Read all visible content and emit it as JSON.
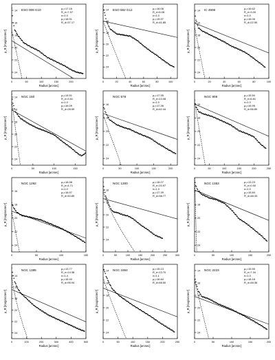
{
  "figure": {
    "y_axis_label": "μ_R [mag/arcsec²]",
    "x_axis_label": "Radius [arcsec]"
  },
  "chart_data": [
    {
      "type": "scatter",
      "name": "ESO 009 G10",
      "xlim": [
        0,
        250
      ],
      "ylim": [
        25,
        13
      ],
      "xticks": [
        0,
        50,
        100,
        150,
        200
      ],
      "yticks": [
        14,
        16,
        18,
        20,
        22,
        24
      ],
      "params": [
        "μ₀=17.16",
        "R_e=7.97",
        "n=1.0",
        "μ₀=18.91",
        "R_d=37.17"
      ],
      "bulge": {
        "mu0": 17.16,
        "re": 7.97,
        "n": 1.0
      },
      "disk": {
        "mu0": 18.91,
        "rd": 37.17
      },
      "profile": [
        [
          0,
          13.7
        ],
        [
          5,
          16.0
        ],
        [
          10,
          17.1
        ],
        [
          20,
          18.0
        ],
        [
          40,
          19.2
        ],
        [
          60,
          19.8
        ],
        [
          90,
          20.5
        ],
        [
          120,
          21.6
        ],
        [
          150,
          22.3
        ],
        [
          180,
          23.0
        ],
        [
          200,
          23.6
        ],
        [
          220,
          24.0
        ],
        [
          240,
          24.2
        ]
      ]
    },
    {
      "type": "scatter",
      "name": "ESO 582 G12",
      "xlim": [
        0,
        110
      ],
      "ylim": [
        26,
        13
      ],
      "xticks": [
        0,
        20,
        40,
        60,
        80,
        100
      ],
      "yticks": [
        14,
        16,
        18,
        20,
        22,
        24
      ],
      "params": [
        "μ₀=16.06",
        "R_e=6.08",
        "n=1.0",
        "μ₀=15.97",
        "R_d=41.85"
      ],
      "bulge": {
        "mu0": 16.06,
        "re": 6.08,
        "n": 1.0
      },
      "disk": {
        "mu0": 15.97,
        "rd": 41.85
      },
      "profile": [
        [
          0,
          13.5
        ],
        [
          2,
          14.5
        ],
        [
          5,
          16.0
        ],
        [
          10,
          17.3
        ],
        [
          20,
          18.2
        ],
        [
          30,
          18.4
        ],
        [
          40,
          18.6
        ],
        [
          50,
          19.3
        ],
        [
          60,
          20.3
        ],
        [
          70,
          21.2
        ],
        [
          80,
          22.0
        ],
        [
          90,
          22.9
        ],
        [
          100,
          23.7
        ],
        [
          105,
          24.0
        ]
      ]
    },
    {
      "type": "scatter",
      "name": "IC 4908",
      "xlim": [
        0,
        100
      ],
      "ylim": [
        25,
        13
      ],
      "xticks": [
        0,
        20,
        40,
        60,
        80,
        100
      ],
      "yticks": [
        14,
        16,
        18,
        20,
        22,
        24
      ],
      "params": [
        "μ₀=16.62",
        "R_e=3.00",
        "n=1.0",
        "μ₀=16.06",
        "R_d=22.50"
      ],
      "bulge": {
        "mu0": 16.62,
        "re": 3.0,
        "n": 1.0
      },
      "disk": {
        "mu0": 16.06,
        "rd": 22.5
      },
      "profile": [
        [
          0,
          14.2
        ],
        [
          2,
          15.6
        ],
        [
          5,
          16.8
        ],
        [
          10,
          17.3
        ],
        [
          20,
          17.9
        ],
        [
          30,
          18.5
        ],
        [
          40,
          19.1
        ],
        [
          50,
          19.8
        ],
        [
          60,
          20.3
        ],
        [
          70,
          20.9
        ],
        [
          80,
          21.8
        ],
        [
          90,
          22.7
        ],
        [
          95,
          23.2
        ]
      ]
    },
    {
      "type": "scatter",
      "name": "NGC 150",
      "xlim": [
        0,
        175
      ],
      "ylim": [
        25,
        13
      ],
      "xticks": [
        0,
        50,
        100,
        150
      ],
      "yticks": [
        14,
        16,
        18,
        20,
        22,
        24
      ],
      "params": [
        "μ₀=14.51",
        "R_e=3.51",
        "n=1.0",
        "μ₀=16.09",
        "R_d=28.59"
      ],
      "bulge": {
        "mu0": 14.51,
        "re": 3.51,
        "n": 1.0
      },
      "disk": {
        "mu0": 16.09,
        "rd": 28.59
      },
      "profile": [
        [
          0,
          13.6
        ],
        [
          3,
          15.0
        ],
        [
          8,
          16.3
        ],
        [
          20,
          17.4
        ],
        [
          40,
          18.3
        ],
        [
          60,
          19.0
        ],
        [
          80,
          19.5
        ],
        [
          100,
          20.1
        ],
        [
          120,
          21.2
        ],
        [
          140,
          22.2
        ],
        [
          155,
          23.1
        ],
        [
          165,
          23.5
        ],
        [
          175,
          23.0
        ]
      ]
    },
    {
      "type": "scatter",
      "name": "NGC 578",
      "xlim": [
        0,
        220
      ],
      "ylim": [
        25,
        14
      ],
      "xticks": [
        0,
        50,
        100,
        150,
        200
      ],
      "yticks": [
        16,
        18,
        20,
        22,
        24
      ],
      "params": [
        "μ₀=17.55",
        "R_e=13.08",
        "n=1.0",
        "μ₀=17.36",
        "R_d=62.44"
      ],
      "bulge": {
        "mu0": 17.55,
        "re": 13.08,
        "n": 1.0
      },
      "disk": {
        "mu0": 17.36,
        "rd": 62.44
      },
      "profile": [
        [
          0,
          16.2
        ],
        [
          10,
          17.5
        ],
        [
          20,
          18.3
        ],
        [
          40,
          19.0
        ],
        [
          60,
          19.4
        ],
        [
          80,
          19.7
        ],
        [
          100,
          20.2
        ],
        [
          120,
          20.6
        ],
        [
          140,
          21.0
        ],
        [
          160,
          21.7
        ],
        [
          180,
          22.3
        ],
        [
          200,
          22.9
        ],
        [
          215,
          23.3
        ]
      ]
    },
    {
      "type": "scatter",
      "name": "NGC 908",
      "xlim": [
        0,
        250
      ],
      "ylim": [
        25,
        14
      ],
      "xticks": [
        0,
        50,
        100,
        150,
        200,
        250
      ],
      "yticks": [
        16,
        18,
        20,
        22,
        24
      ],
      "params": [
        "μ₀=15.50",
        "R_e=6.81",
        "n=1.0",
        "μ₀=15.95",
        "R_d=56.89"
      ],
      "bulge": {
        "mu0": 15.5,
        "re": 6.81,
        "n": 1.0
      },
      "disk": {
        "mu0": 15.95,
        "rd": 56.89
      },
      "profile": [
        [
          0,
          15.4
        ],
        [
          5,
          16.4
        ],
        [
          15,
          17.1
        ],
        [
          30,
          17.4
        ],
        [
          60,
          17.8
        ],
        [
          90,
          18.4
        ],
        [
          120,
          19.0
        ],
        [
          150,
          19.9
        ],
        [
          180,
          20.4
        ],
        [
          200,
          20.8
        ],
        [
          220,
          21.8
        ],
        [
          240,
          22.5
        ]
      ]
    },
    {
      "type": "scatter",
      "name": "NGC 1292",
      "xlim": [
        0,
        150
      ],
      "ylim": [
        25,
        14
      ],
      "xticks": [
        0,
        50,
        100,
        150
      ],
      "yticks": [
        16,
        18,
        20,
        22,
        24
      ],
      "params": [
        "μ₀=18.98",
        "R_e=4.71",
        "n=1.0",
        "μ₀=18.97",
        "R_d=40.89"
      ],
      "bulge": {
        "mu0": 18.98,
        "re": 4.71,
        "n": 1.0
      },
      "disk": {
        "mu0": 18.97,
        "rd": 40.89
      },
      "profile": [
        [
          0,
          17.8
        ],
        [
          5,
          18.6
        ],
        [
          10,
          19.1
        ],
        [
          20,
          19.6
        ],
        [
          40,
          19.9
        ],
        [
          60,
          20.3
        ],
        [
          80,
          20.9
        ],
        [
          100,
          21.5
        ],
        [
          120,
          22.3
        ],
        [
          140,
          23.2
        ],
        [
          148,
          23.6
        ]
      ]
    },
    {
      "type": "scatter",
      "name": "NGC 1300",
      "xlim": [
        0,
        300
      ],
      "ylim": [
        26,
        14
      ],
      "xticks": [
        0,
        50,
        100,
        150,
        200,
        250,
        300
      ],
      "yticks": [
        16,
        18,
        20,
        22,
        24
      ],
      "params": [
        "μ₀=16.07",
        "R_e=20.97",
        "n=1.3",
        "μ₀=17.39",
        "R_d=98.77"
      ],
      "bulge": {
        "mu0": 16.07,
        "re": 20.97,
        "n": 1.3
      },
      "disk": {
        "mu0": 17.39,
        "rd": 98.77
      },
      "profile": [
        [
          0,
          14.8
        ],
        [
          5,
          16.0
        ],
        [
          10,
          16.9
        ],
        [
          20,
          18.0
        ],
        [
          30,
          19.0
        ],
        [
          40,
          19.5
        ],
        [
          60,
          19.7
        ],
        [
          80,
          20.0
        ],
        [
          100,
          20.2
        ],
        [
          120,
          20.6
        ],
        [
          150,
          21.6
        ],
        [
          180,
          22.4
        ],
        [
          210,
          23.3
        ],
        [
          240,
          23.8
        ]
      ]
    },
    {
      "type": "scatter",
      "name": "NGC 1353",
      "xlim": [
        0,
        200
      ],
      "ylim": [
        25,
        14
      ],
      "xticks": [
        0,
        50,
        100,
        150,
        200
      ],
      "yticks": [
        16,
        18,
        20,
        22,
        24
      ],
      "params": [
        "μ₀=13.23",
        "R_e=0.90",
        "n=1.0",
        "μ₀=15.84",
        "R_d=48.33"
      ],
      "bulge": {
        "mu0": 13.23,
        "re": 0.9,
        "n": 1.0
      },
      "disk": {
        "mu0": 15.84,
        "rd": 48.33
      },
      "profile": [
        [
          0,
          14.2
        ],
        [
          3,
          15.2
        ],
        [
          10,
          16.0
        ],
        [
          20,
          16.5
        ],
        [
          40,
          17.0
        ],
        [
          60,
          17.3
        ],
        [
          80,
          17.8
        ],
        [
          100,
          18.8
        ],
        [
          120,
          20.1
        ],
        [
          140,
          20.8
        ],
        [
          160,
          21.7
        ],
        [
          180,
          22.6
        ],
        [
          195,
          23.4
        ]
      ]
    },
    {
      "type": "scatter",
      "name": "NGC 1385",
      "xlim": [
        0,
        500
      ],
      "ylim": [
        25,
        12
      ],
      "xticks": [
        0,
        100,
        200,
        300,
        400,
        500
      ],
      "yticks": [
        14,
        16,
        18,
        20,
        22,
        24
      ],
      "params": [
        "μ₀=13.77",
        "R_e=14.38",
        "n=1.4",
        "μ₀=16.40",
        "R_d=95.94"
      ],
      "bulge": {
        "mu0": 13.77,
        "re": 14.38,
        "n": 1.4
      },
      "disk": {
        "mu0": 16.4,
        "rd": 95.94
      },
      "profile": [
        [
          0,
          12.7
        ],
        [
          10,
          14.0
        ],
        [
          20,
          15.0
        ],
        [
          40,
          16.2
        ],
        [
          60,
          17.0
        ],
        [
          100,
          18.0
        ],
        [
          150,
          19.2
        ],
        [
          200,
          20.1
        ],
        [
          250,
          20.9
        ],
        [
          300,
          21.5
        ],
        [
          350,
          22.1
        ],
        [
          400,
          22.7
        ],
        [
          450,
          23.3
        ],
        [
          490,
          23.7
        ]
      ]
    },
    {
      "type": "scatter",
      "name": "NGC 1964",
      "xlim": [
        0,
        250
      ],
      "ylim": [
        25,
        13
      ],
      "xticks": [
        0,
        50,
        100,
        150,
        200,
        250
      ],
      "yticks": [
        14,
        16,
        18,
        20,
        22,
        24
      ],
      "params": [
        "μ₀=15.13",
        "R_e=13.70",
        "n=1.1",
        "μ₀=16.84",
        "R_d=58.50"
      ],
      "bulge": {
        "mu0": 15.13,
        "re": 13.7,
        "n": 1.1
      },
      "disk": {
        "mu0": 16.84,
        "rd": 58.5
      },
      "profile": [
        [
          0,
          13.4
        ],
        [
          5,
          14.2
        ],
        [
          10,
          14.9
        ],
        [
          20,
          16.0
        ],
        [
          30,
          16.9
        ],
        [
          50,
          17.9
        ],
        [
          70,
          18.6
        ],
        [
          100,
          19.6
        ],
        [
          130,
          20.5
        ],
        [
          160,
          21.4
        ],
        [
          190,
          22.4
        ],
        [
          220,
          23.3
        ],
        [
          240,
          23.9
        ]
      ]
    },
    {
      "type": "scatter",
      "name": "NGC 2223",
      "xlim": [
        0,
        200
      ],
      "ylim": [
        25,
        13
      ],
      "xticks": [
        0,
        50,
        100,
        150,
        200
      ],
      "yticks": [
        14,
        16,
        18,
        20,
        22,
        24
      ],
      "params": [
        "μ₀=15.55",
        "R_e=7.34",
        "n=1.0",
        "μ₀=18.18",
        "R_d=48.36"
      ],
      "bulge": {
        "mu0": 15.55,
        "re": 7.34,
        "n": 1.0
      },
      "disk": {
        "mu0": 18.18,
        "rd": 48.36
      },
      "profile": [
        [
          0,
          14.9
        ],
        [
          5,
          16.3
        ],
        [
          10,
          17.3
        ],
        [
          20,
          18.2
        ],
        [
          40,
          18.6
        ],
        [
          60,
          19.3
        ],
        [
          80,
          19.8
        ],
        [
          100,
          20.3
        ],
        [
          120,
          20.9
        ],
        [
          140,
          21.5
        ],
        [
          160,
          22.2
        ],
        [
          180,
          22.9
        ],
        [
          195,
          23.5
        ]
      ]
    }
  ]
}
